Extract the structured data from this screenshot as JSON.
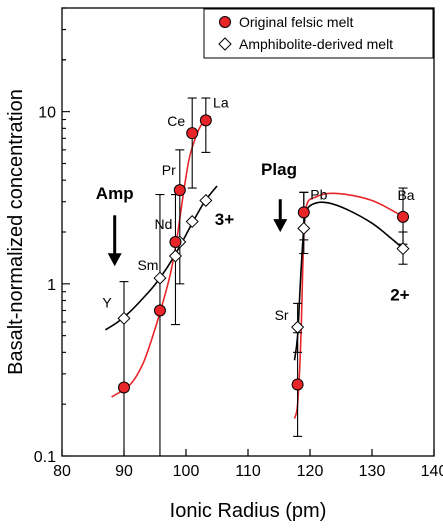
{
  "chart_data": {
    "type": "scatter",
    "xlabel": "Ionic Radius (pm)",
    "ylabel": "Basalt-normalized concentration",
    "xlim": [
      80,
      140
    ],
    "ylim": [
      0.1,
      40
    ],
    "y_scale": "log",
    "x_ticks": [
      80,
      90,
      100,
      110,
      120,
      130,
      140
    ],
    "y_ticks": [
      {
        "value": 0.1,
        "label": "0.1"
      },
      {
        "value": 1,
        "label": "1"
      },
      {
        "value": 10,
        "label": "10"
      }
    ],
    "legend": {
      "position": "top-right",
      "entries": [
        {
          "label": "Original felsic melt",
          "marker": "circle",
          "fill": "#e8262a"
        },
        {
          "label": "Amphibolite-derived melt",
          "marker": "diamond",
          "fill": "#ffffff"
        }
      ]
    },
    "series": [
      {
        "name": "Original felsic melt",
        "marker": "circle",
        "fill": "#e8262a",
        "stroke": "#000000",
        "points": [
          {
            "x": 90,
            "y": 0.25,
            "err_low": 0.1,
            "err_high": 1.03
          },
          {
            "x": 95.8,
            "y": 0.7,
            "err_low": 0.1,
            "err_high": 3.3
          },
          {
            "x": 98.3,
            "y": 1.75,
            "err_low": 0.58,
            "err_high": 3.3
          },
          {
            "x": 99,
            "y": 3.5,
            "err_low": 1.0,
            "err_high": 6.0
          },
          {
            "x": 101,
            "y": 7.5,
            "err_low": 3.6,
            "err_high": 12.0
          },
          {
            "x": 103.2,
            "y": 8.9,
            "err_low": 5.8,
            "err_high": 12.0
          },
          {
            "x": 118,
            "y": 0.26,
            "err_low": 0.13,
            "err_high": 0.52
          },
          {
            "x": 119,
            "y": 2.6,
            "err_low": 1.8,
            "err_high": 3.4
          },
          {
            "x": 135,
            "y": 2.45,
            "err_low": 1.7,
            "err_high": 3.6
          }
        ]
      },
      {
        "name": "Amphibolite-derived melt",
        "marker": "diamond",
        "fill": "#ffffff",
        "stroke": "#000000",
        "points": [
          {
            "x": 90,
            "y": 0.63
          },
          {
            "x": 95.8,
            "y": 1.08
          },
          {
            "x": 98.3,
            "y": 1.45
          },
          {
            "x": 99,
            "y": 1.75
          },
          {
            "x": 101,
            "y": 2.3
          },
          {
            "x": 103.2,
            "y": 3.05
          },
          {
            "x": 118,
            "y": 0.56,
            "err_low": 0.4,
            "err_high": 0.77
          },
          {
            "x": 119,
            "y": 2.1,
            "err_low": 1.5,
            "err_high": 3.4
          },
          {
            "x": 135,
            "y": 1.6,
            "err_low": 1.3,
            "err_high": 2.0
          }
        ]
      }
    ],
    "curves": [
      {
        "color": "#e8262a",
        "points": [
          [
            88,
            0.22
          ],
          [
            91,
            0.26
          ],
          [
            93,
            0.34
          ],
          [
            94.5,
            0.48
          ],
          [
            96,
            0.72
          ],
          [
            97.5,
            1.15
          ],
          [
            98.5,
            1.8
          ],
          [
            99.5,
            3.2
          ],
          [
            100.5,
            5.3
          ],
          [
            101.5,
            7.0
          ],
          [
            102.5,
            8.4
          ],
          [
            104,
            9.4
          ]
        ]
      },
      {
        "color": "#000000",
        "points": [
          [
            87,
            0.54
          ],
          [
            89,
            0.6
          ],
          [
            91,
            0.69
          ],
          [
            93,
            0.82
          ],
          [
            95,
            0.99
          ],
          [
            97,
            1.25
          ],
          [
            99,
            1.65
          ],
          [
            101,
            2.25
          ],
          [
            103,
            3.0
          ],
          [
            105,
            3.7
          ]
        ]
      },
      {
        "color": "#e8262a",
        "points": [
          [
            117.5,
            0.165
          ],
          [
            118,
            0.2
          ],
          [
            118.5,
            0.45
          ],
          [
            119,
            1.9
          ],
          [
            119.5,
            2.9
          ],
          [
            121,
            3.2
          ],
          [
            123,
            3.35
          ],
          [
            126,
            3.3
          ],
          [
            130,
            3.05
          ],
          [
            133,
            2.7
          ],
          [
            135,
            2.45
          ]
        ]
      },
      {
        "color": "#000000",
        "points": [
          [
            117.5,
            0.36
          ],
          [
            118,
            0.5
          ],
          [
            118.5,
            1.1
          ],
          [
            119,
            2.1
          ],
          [
            119.5,
            2.7
          ],
          [
            121,
            2.95
          ],
          [
            123,
            2.95
          ],
          [
            126,
            2.7
          ],
          [
            130,
            2.25
          ],
          [
            133,
            1.85
          ],
          [
            135.5,
            1.55
          ]
        ]
      }
    ],
    "point_labels": [
      {
        "text": "Y",
        "x": 90,
        "y": 0.63
      },
      {
        "text": "Sm",
        "x": 95.8,
        "y": 1.08
      },
      {
        "text": "Nd",
        "x": 98.3,
        "y": 1.75
      },
      {
        "text": "Pr",
        "x": 99,
        "y": 3.5
      },
      {
        "text": "Ce",
        "x": 101,
        "y": 7.5
      },
      {
        "text": "La",
        "x": 103.2,
        "y": 8.9
      },
      {
        "text": "Sr",
        "x": 118,
        "y": 0.56
      },
      {
        "text": "Pb",
        "x": 119,
        "y": 2.6
      },
      {
        "text": "Ba",
        "x": 135,
        "y": 2.45
      }
    ],
    "annotations": [
      {
        "text": "Amp",
        "x": 88.5,
        "y": 3.1
      },
      {
        "text": "3+",
        "x": 106.2,
        "y": 2.2
      },
      {
        "text": "Plag",
        "x": 115,
        "y": 4.3
      },
      {
        "text": "2+",
        "x": 134.5,
        "y": 0.8
      }
    ],
    "arrows": [
      {
        "x": 88.5,
        "y_from": 2.5,
        "y_to": 1.3
      },
      {
        "x": 115.2,
        "y_from": 3.1,
        "y_to": 2.05
      }
    ]
  }
}
